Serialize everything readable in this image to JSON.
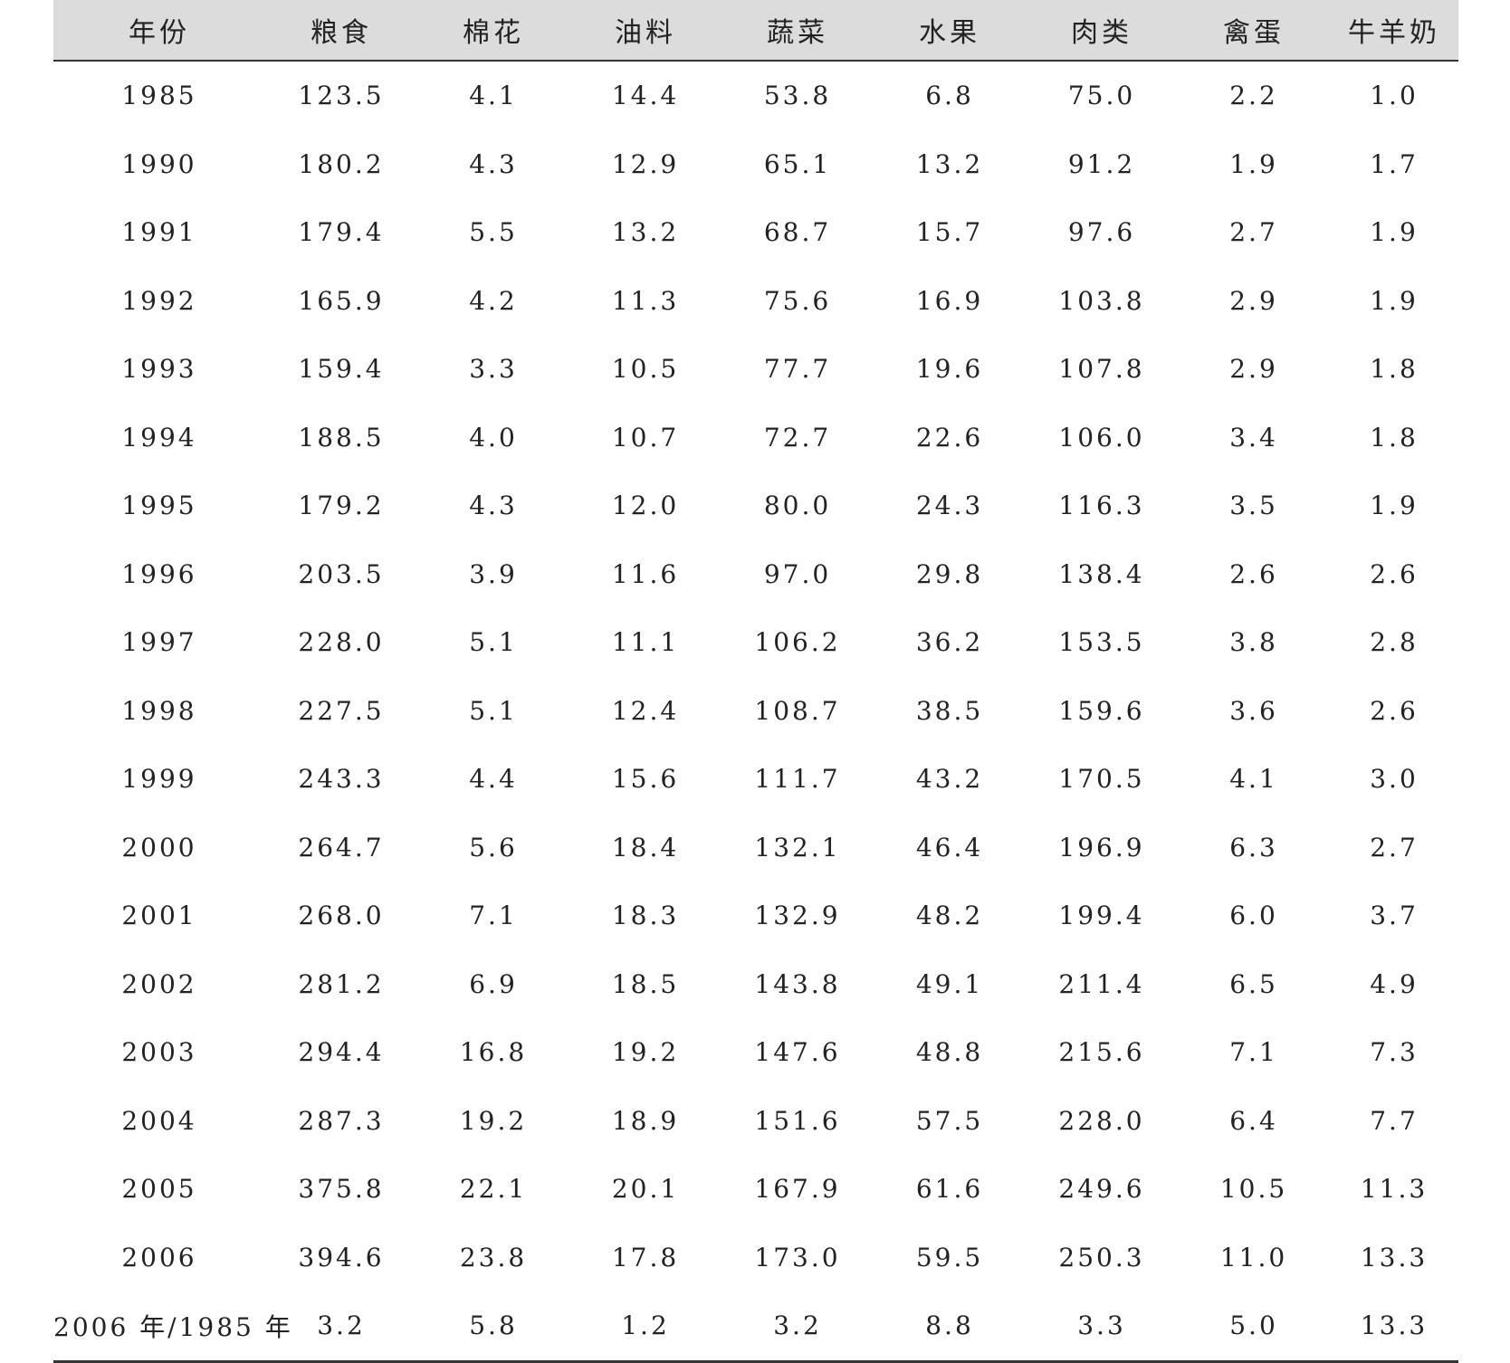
{
  "table": {
    "headers": [
      "年份",
      "粮食",
      "棉花",
      "油料",
      "蔬菜",
      "水果",
      "肉类",
      "禽蛋",
      "牛羊奶"
    ],
    "rows": [
      [
        "1985",
        "123.5",
        "4.1",
        "14.4",
        "53.8",
        "6.8",
        "75.0",
        "2.2",
        "1.0"
      ],
      [
        "1990",
        "180.2",
        "4.3",
        "12.9",
        "65.1",
        "13.2",
        "91.2",
        "1.9",
        "1.7"
      ],
      [
        "1991",
        "179.4",
        "5.5",
        "13.2",
        "68.7",
        "15.7",
        "97.6",
        "2.7",
        "1.9"
      ],
      [
        "1992",
        "165.9",
        "4.2",
        "11.3",
        "75.6",
        "16.9",
        "103.8",
        "2.9",
        "1.9"
      ],
      [
        "1993",
        "159.4",
        "3.3",
        "10.5",
        "77.7",
        "19.6",
        "107.8",
        "2.9",
        "1.8"
      ],
      [
        "1994",
        "188.5",
        "4.0",
        "10.7",
        "72.7",
        "22.6",
        "106.0",
        "3.4",
        "1.8"
      ],
      [
        "1995",
        "179.2",
        "4.3",
        "12.0",
        "80.0",
        "24.3",
        "116.3",
        "3.5",
        "1.9"
      ],
      [
        "1996",
        "203.5",
        "3.9",
        "11.6",
        "97.0",
        "29.8",
        "138.4",
        "2.6",
        "2.6"
      ],
      [
        "1997",
        "228.0",
        "5.1",
        "11.1",
        "106.2",
        "36.2",
        "153.5",
        "3.8",
        "2.8"
      ],
      [
        "1998",
        "227.5",
        "5.1",
        "12.4",
        "108.7",
        "38.5",
        "159.6",
        "3.6",
        "2.6"
      ],
      [
        "1999",
        "243.3",
        "4.4",
        "15.6",
        "111.7",
        "43.2",
        "170.5",
        "4.1",
        "3.0"
      ],
      [
        "2000",
        "264.7",
        "5.6",
        "18.4",
        "132.1",
        "46.4",
        "196.9",
        "6.3",
        "2.7"
      ],
      [
        "2001",
        "268.0",
        "7.1",
        "18.3",
        "132.9",
        "48.2",
        "199.4",
        "6.0",
        "3.7"
      ],
      [
        "2002",
        "281.2",
        "6.9",
        "18.5",
        "143.8",
        "49.1",
        "211.4",
        "6.5",
        "4.9"
      ],
      [
        "2003",
        "294.4",
        "16.8",
        "19.2",
        "147.6",
        "48.8",
        "215.6",
        "7.1",
        "7.3"
      ],
      [
        "2004",
        "287.3",
        "19.2",
        "18.9",
        "151.6",
        "57.5",
        "228.0",
        "6.4",
        "7.7"
      ],
      [
        "2005",
        "375.8",
        "22.1",
        "20.1",
        "167.9",
        "61.6",
        "249.6",
        "10.5",
        "11.3"
      ],
      [
        "2006",
        "394.6",
        "23.8",
        "17.8",
        "173.0",
        "59.5",
        "250.3",
        "11.0",
        "13.3"
      ],
      [
        "2006 年/1985 年",
        "3.2",
        "5.8",
        "1.2",
        "3.2",
        "8.8",
        "3.3",
        "5.0",
        "13.3"
      ]
    ]
  }
}
